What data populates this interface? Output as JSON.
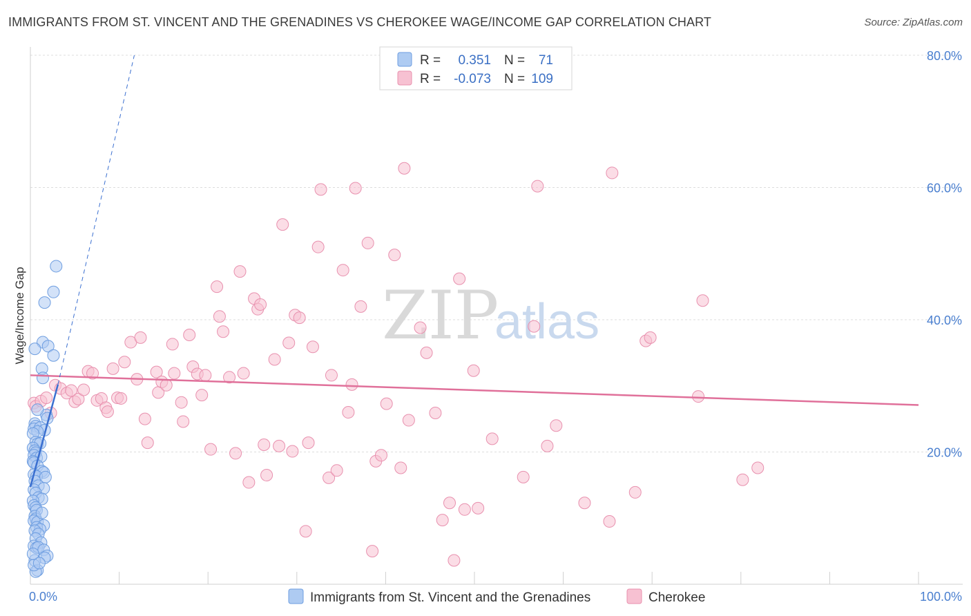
{
  "title": "IMMIGRANTS FROM ST. VINCENT AND THE GRENADINES VS CHEROKEE WAGE/INCOME GAP CORRELATION CHART",
  "source": "Source: ZipAtlas.com",
  "watermark": {
    "zip": "ZIP",
    "atlas": "atlas"
  },
  "legend_top": {
    "rows": [
      {
        "r_label": "R = ",
        "r_value": "0.351",
        "n_label": "N = ",
        "n_value": "71",
        "fill": "#aecbf2",
        "stroke": "#6d9de0"
      },
      {
        "r_label": "R = ",
        "r_value": "-0.073",
        "n_label": "N = ",
        "n_value": "109",
        "fill": "#f7c1d2",
        "stroke": "#e890ae"
      }
    ]
  },
  "legend_bottom": [
    {
      "label": "Immigrants from St. Vincent and the Grenadines",
      "fill": "#aecbf2",
      "stroke": "#6d9de0"
    },
    {
      "label": "Cherokee",
      "fill": "#f7c1d2",
      "stroke": "#e890ae"
    }
  ],
  "chart_data": {
    "type": "scatter",
    "title": "IMMIGRANTS FROM ST. VINCENT AND THE GRENADINES VS CHEROKEE WAGE/INCOME GAP CORRELATION CHART",
    "xlabel": "",
    "ylabel": "Wage/Income Gap",
    "xlim": [
      0,
      100
    ],
    "ylim": [
      0,
      80
    ],
    "x_tick_labels": [
      "0.0%",
      "100.0%"
    ],
    "y_ticks": [
      20,
      40,
      60,
      80
    ],
    "y_tick_labels": [
      "20.0%",
      "40.0%",
      "60.0%",
      "80.0%"
    ],
    "grid": true,
    "legend_position": "top-center",
    "colors": {
      "blue_fill": "#aecbf2",
      "blue_stroke": "#6d9de0",
      "blue_line": "#3a6fd0",
      "pink_fill": "#f7c1d2",
      "pink_stroke": "#e890ae",
      "pink_line": "#e0709a"
    },
    "series": [
      {
        "name": "Immigrants from St. Vincent and the Grenadines",
        "R": 0.351,
        "N": 71,
        "trend": {
          "solid": [
            [
              0,
              14.7
            ],
            [
              3.1,
              30.2
            ]
          ],
          "dashed": [
            [
              3.1,
              30.2
            ],
            [
              11.7,
              80.0
            ]
          ]
        },
        "points": [
          [
            2.9,
            48.1
          ],
          [
            2.6,
            44.2
          ],
          [
            1.6,
            42.6
          ],
          [
            1.4,
            36.6
          ],
          [
            2.0,
            36.0
          ],
          [
            0.5,
            35.6
          ],
          [
            2.6,
            34.6
          ],
          [
            1.3,
            32.6
          ],
          [
            1.4,
            31.2
          ],
          [
            1.8,
            25.6
          ],
          [
            1.9,
            25.1
          ],
          [
            0.5,
            24.3
          ],
          [
            0.6,
            23.9
          ],
          [
            0.4,
            23.5
          ],
          [
            1.1,
            23.7
          ],
          [
            1.6,
            23.3
          ],
          [
            0.8,
            23.1
          ],
          [
            0.3,
            22.8
          ],
          [
            0.6,
            21.5
          ],
          [
            0.8,
            21.2
          ],
          [
            1.1,
            21.3
          ],
          [
            0.3,
            20.6
          ],
          [
            0.5,
            20.2
          ],
          [
            0.6,
            19.9
          ],
          [
            0.4,
            19.5
          ],
          [
            0.7,
            19.1
          ],
          [
            1.2,
            19.3
          ],
          [
            0.3,
            18.6
          ],
          [
            0.4,
            18.4
          ],
          [
            0.8,
            17.9
          ],
          [
            1.3,
            17.1
          ],
          [
            1.5,
            16.9
          ],
          [
            0.4,
            16.6
          ],
          [
            0.7,
            16.3
          ],
          [
            1.7,
            16.2
          ],
          [
            0.5,
            15.6
          ],
          [
            0.9,
            14.9
          ],
          [
            1.5,
            14.5
          ],
          [
            0.4,
            14.3
          ],
          [
            0.6,
            13.8
          ],
          [
            0.9,
            13.1
          ],
          [
            1.3,
            12.9
          ],
          [
            0.3,
            12.6
          ],
          [
            0.4,
            11.9
          ],
          [
            0.6,
            11.6
          ],
          [
            0.7,
            11.2
          ],
          [
            0.5,
            10.3
          ],
          [
            0.6,
            9.9
          ],
          [
            0.4,
            9.6
          ],
          [
            0.8,
            9.4
          ],
          [
            1.5,
            8.9
          ],
          [
            0.7,
            8.6
          ],
          [
            1.1,
            8.3
          ],
          [
            0.5,
            8.1
          ],
          [
            0.9,
            7.6
          ],
          [
            0.6,
            6.9
          ],
          [
            1.2,
            6.3
          ],
          [
            0.4,
            5.8
          ],
          [
            0.7,
            5.5
          ],
          [
            0.9,
            5.6
          ],
          [
            1.5,
            5.2
          ],
          [
            1.9,
            4.3
          ],
          [
            1.6,
            4.0
          ],
          [
            0.5,
            3.6
          ],
          [
            0.8,
            2.1
          ],
          [
            0.6,
            1.9
          ],
          [
            0.4,
            2.9
          ],
          [
            1.0,
            3.2
          ],
          [
            0.3,
            4.6
          ],
          [
            1.3,
            10.8
          ],
          [
            0.8,
            26.4
          ]
        ]
      },
      {
        "name": "Cherokee",
        "R": -0.073,
        "N": 109,
        "trend": {
          "solid": [
            [
              0,
              31.6
            ],
            [
              100,
              27.1
            ]
          ]
        },
        "points": [
          [
            0.4,
            27.4
          ],
          [
            0.6,
            26.9
          ],
          [
            1.2,
            27.7
          ],
          [
            1.8,
            28.2
          ],
          [
            2.3,
            25.9
          ],
          [
            2.8,
            30.1
          ],
          [
            3.4,
            29.6
          ],
          [
            4.1,
            28.9
          ],
          [
            4.6,
            29.3
          ],
          [
            5.0,
            27.6
          ],
          [
            5.4,
            28.0
          ],
          [
            6.0,
            29.4
          ],
          [
            6.5,
            32.2
          ],
          [
            7.0,
            31.9
          ],
          [
            7.5,
            27.8
          ],
          [
            8.0,
            28.1
          ],
          [
            8.5,
            26.7
          ],
          [
            8.7,
            26.1
          ],
          [
            9.3,
            32.6
          ],
          [
            9.8,
            28.2
          ],
          [
            10.2,
            28.1
          ],
          [
            10.6,
            33.6
          ],
          [
            11.3,
            36.6
          ],
          [
            12.0,
            31.0
          ],
          [
            12.4,
            37.3
          ],
          [
            12.9,
            25.0
          ],
          [
            13.2,
            21.4
          ],
          [
            14.2,
            32.1
          ],
          [
            14.4,
            29.0
          ],
          [
            14.8,
            30.6
          ],
          [
            15.3,
            30.1
          ],
          [
            16.0,
            36.3
          ],
          [
            16.2,
            31.9
          ],
          [
            17.0,
            27.5
          ],
          [
            17.2,
            24.6
          ],
          [
            17.9,
            37.7
          ],
          [
            18.3,
            32.9
          ],
          [
            18.8,
            31.8
          ],
          [
            19.3,
            28.6
          ],
          [
            19.7,
            31.6
          ],
          [
            20.3,
            20.4
          ],
          [
            21.0,
            45.0
          ],
          [
            21.3,
            40.5
          ],
          [
            21.7,
            38.2
          ],
          [
            22.4,
            31.3
          ],
          [
            23.1,
            19.8
          ],
          [
            23.6,
            47.3
          ],
          [
            24.0,
            31.9
          ],
          [
            24.6,
            15.4
          ],
          [
            25.2,
            43.2
          ],
          [
            25.6,
            41.6
          ],
          [
            25.9,
            42.3
          ],
          [
            26.3,
            21.1
          ],
          [
            26.6,
            16.5
          ],
          [
            27.5,
            34.0
          ],
          [
            28.0,
            20.9
          ],
          [
            28.4,
            54.4
          ],
          [
            29.1,
            36.5
          ],
          [
            29.5,
            20.1
          ],
          [
            29.8,
            40.7
          ],
          [
            30.3,
            40.3
          ],
          [
            31.0,
            8.0
          ],
          [
            31.3,
            21.4
          ],
          [
            31.8,
            35.9
          ],
          [
            32.4,
            51.0
          ],
          [
            32.7,
            59.7
          ],
          [
            33.6,
            16.1
          ],
          [
            33.9,
            31.6
          ],
          [
            34.5,
            17.2
          ],
          [
            35.2,
            47.5
          ],
          [
            35.8,
            26.0
          ],
          [
            36.2,
            30.2
          ],
          [
            36.6,
            59.9
          ],
          [
            37.2,
            42.0
          ],
          [
            38.0,
            51.6
          ],
          [
            38.5,
            5.0
          ],
          [
            38.9,
            18.6
          ],
          [
            39.5,
            19.5
          ],
          [
            40.1,
            27.3
          ],
          [
            41.0,
            49.8
          ],
          [
            41.7,
            17.6
          ],
          [
            42.1,
            62.9
          ],
          [
            42.6,
            24.8
          ],
          [
            43.9,
            38.8
          ],
          [
            44.6,
            35.0
          ],
          [
            45.6,
            25.9
          ],
          [
            46.4,
            9.7
          ],
          [
            47.2,
            12.3
          ],
          [
            47.7,
            3.6
          ],
          [
            48.3,
            46.2
          ],
          [
            48.9,
            11.3
          ],
          [
            49.9,
            32.3
          ],
          [
            50.4,
            11.5
          ],
          [
            52.0,
            22.0
          ],
          [
            55.5,
            16.2
          ],
          [
            56.7,
            39.0
          ],
          [
            57.1,
            60.2
          ],
          [
            58.2,
            20.9
          ],
          [
            59.2,
            24.0
          ],
          [
            62.4,
            12.3
          ],
          [
            65.2,
            9.5
          ],
          [
            65.5,
            62.2
          ],
          [
            68.1,
            13.9
          ],
          [
            69.3,
            36.8
          ],
          [
            69.8,
            37.3
          ],
          [
            75.2,
            28.4
          ],
          [
            75.7,
            42.9
          ],
          [
            80.2,
            15.8
          ],
          [
            81.9,
            17.6
          ]
        ]
      }
    ]
  }
}
